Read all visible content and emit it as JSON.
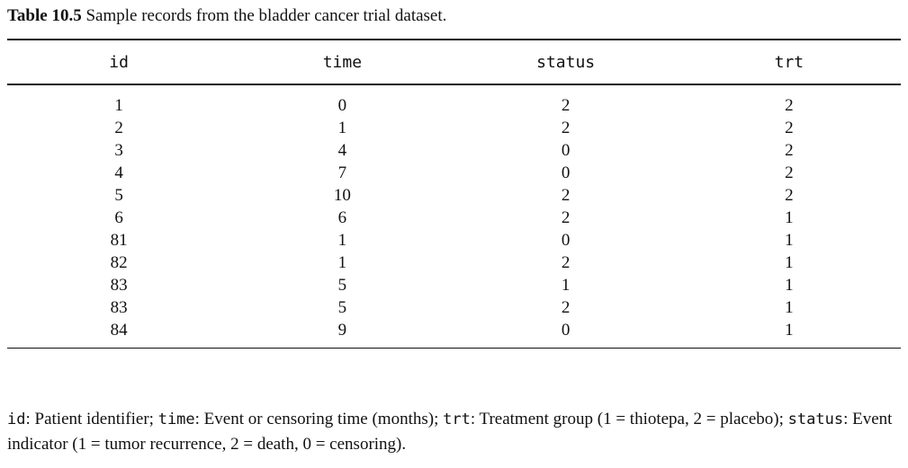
{
  "caption": {
    "label": "Table 10.5",
    "text": "Sample records from the bladder cancer trial dataset."
  },
  "table": {
    "columns": [
      "id",
      "time",
      "status",
      "trt"
    ],
    "rows": [
      [
        "1",
        "0",
        "2",
        "2"
      ],
      [
        "2",
        "1",
        "2",
        "2"
      ],
      [
        "3",
        "4",
        "0",
        "2"
      ],
      [
        "4",
        "7",
        "0",
        "2"
      ],
      [
        "5",
        "10",
        "2",
        "2"
      ],
      [
        "6",
        "6",
        "2",
        "1"
      ],
      [
        "81",
        "1",
        "0",
        "1"
      ],
      [
        "82",
        "1",
        "2",
        "1"
      ],
      [
        "83",
        "5",
        "1",
        "1"
      ],
      [
        "83",
        "5",
        "2",
        "1"
      ],
      [
        "84",
        "9",
        "0",
        "1"
      ]
    ]
  },
  "footnote": {
    "parts": [
      {
        "code": "id",
        "text": ": Patient identifier; "
      },
      {
        "code": "time",
        "text": ": Event or censoring time (months); "
      },
      {
        "code": "trt",
        "text": ": Treatment group (1 = thiotepa, 2 = placebo); "
      },
      {
        "code": "status",
        "text": ": Event indicator (1 = tumor recurrence, 2 = death, 0 = censoring)."
      }
    ]
  }
}
